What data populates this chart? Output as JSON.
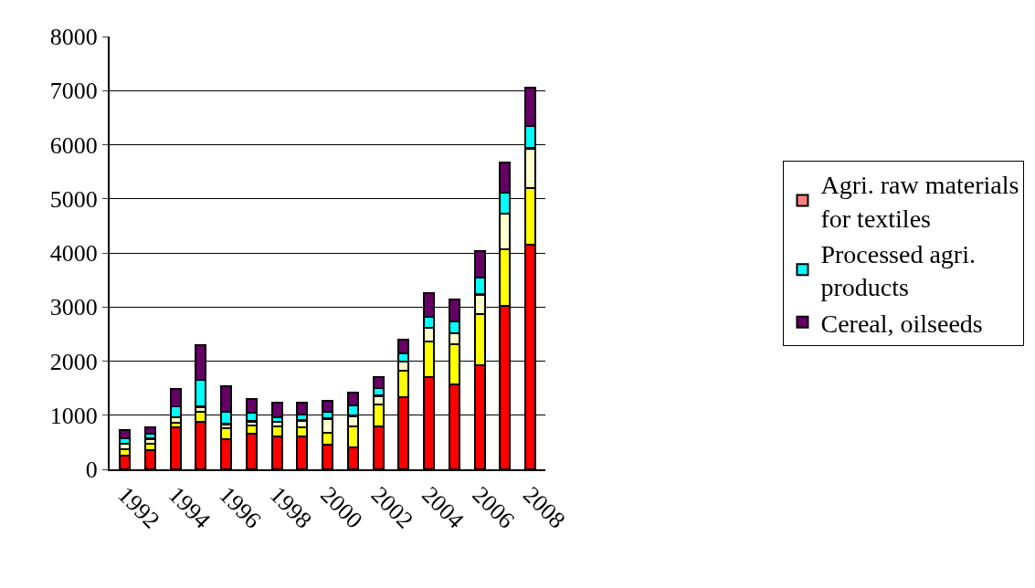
{
  "chart_data": {
    "type": "bar",
    "stacked": true,
    "categories": [
      "1992",
      null,
      "1994",
      null,
      "1996",
      null,
      "1998",
      null,
      "2000",
      null,
      "2002",
      null,
      "2004",
      null,
      "2006",
      null,
      "2008"
    ],
    "series": [
      {
        "color": "#ff0000",
        "values": [
          260,
          360,
          780,
          880,
          550,
          650,
          600,
          600,
          450,
          400,
          800,
          1340,
          1700,
          1570,
          1920,
          3020,
          4150
        ]
      },
      {
        "color": "#ffff00",
        "values": [
          110,
          110,
          80,
          180,
          210,
          160,
          200,
          180,
          230,
          400,
          400,
          490,
          670,
          750,
          950,
          1050,
          1040
        ]
      },
      {
        "color": "#ffffcc",
        "values": [
          100,
          90,
          100,
          90,
          70,
          70,
          70,
          120,
          250,
          180,
          150,
          160,
          240,
          190,
          360,
          650,
          740
        ]
      },
      {
        "name": "Agri. raw materials for textiles",
        "color": "#ff8080",
        "values": [
          10,
          10,
          10,
          10,
          10,
          10,
          10,
          10,
          10,
          10,
          10,
          10,
          10,
          10,
          10,
          10,
          10
        ]
      },
      {
        "name": "Processed agri. products",
        "color": "#00ffff",
        "values": [
          100,
          90,
          200,
          490,
          230,
          150,
          80,
          100,
          120,
          190,
          140,
          150,
          200,
          220,
          300,
          380,
          400
        ]
      },
      {
        "name": "Cereal, oilseeds",
        "color": "#660066",
        "values": [
          150,
          110,
          320,
          640,
          470,
          260,
          280,
          230,
          210,
          230,
          200,
          250,
          440,
          400,
          500,
          560,
          710
        ]
      }
    ],
    "ylim": [
      0,
      8000
    ],
    "yticks": [
      0,
      1000,
      2000,
      3000,
      4000,
      5000,
      6000,
      7000,
      8000
    ],
    "grid": "y",
    "legend": "right"
  }
}
